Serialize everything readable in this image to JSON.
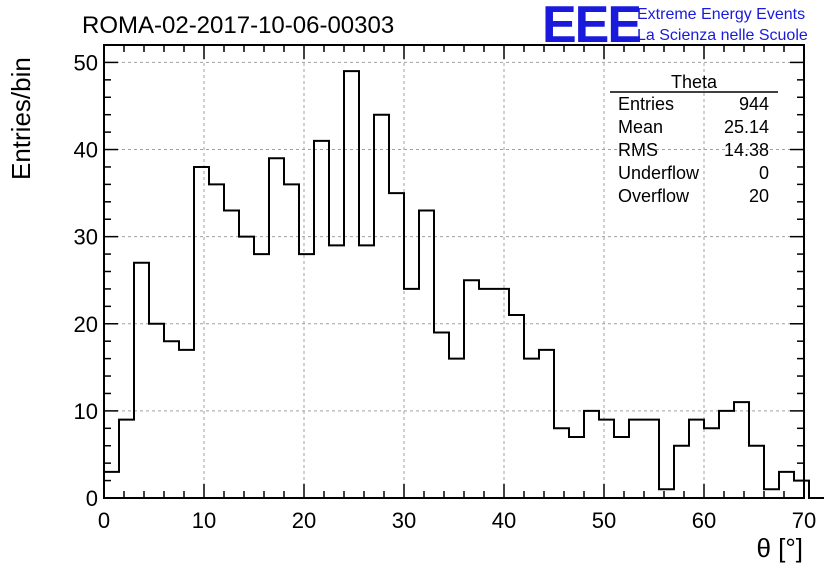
{
  "chart_data": {
    "type": "bar",
    "title": "ROMA-02-2017-10-06-00303",
    "xlabel": "θ [°]",
    "ylabel": "Entries/bin",
    "xlim": [
      0,
      70
    ],
    "ylim": [
      0,
      52
    ],
    "grid": true,
    "bin_width": 1.5,
    "x_ticks": [
      0,
      10,
      20,
      30,
      40,
      50,
      60,
      70
    ],
    "y_ticks": [
      0,
      10,
      20,
      30,
      40,
      50
    ],
    "values": [
      3,
      9,
      27,
      20,
      18,
      17,
      38,
      36,
      33,
      30,
      28,
      39,
      36,
      28,
      41,
      29,
      49,
      29,
      44,
      35,
      24,
      33,
      19,
      16,
      25,
      24,
      24,
      21,
      16,
      17,
      8,
      7,
      10,
      9,
      7,
      9,
      9,
      1,
      6,
      9,
      8,
      10,
      11,
      6,
      1,
      3,
      2,
      0
    ]
  },
  "stats_box": {
    "title": "Theta",
    "rows": [
      {
        "label": "Entries",
        "value": "944"
      },
      {
        "label": "Mean",
        "value": "25.14"
      },
      {
        "label": "RMS",
        "value": "14.38"
      },
      {
        "label": "Underflow",
        "value": "0"
      },
      {
        "label": "Overflow",
        "value": "20"
      }
    ]
  },
  "logo": {
    "mark": "EEE",
    "line1": "Extreme Energy Events",
    "line2": "La Scienza nelle Scuole",
    "color": "#1a1adc"
  }
}
